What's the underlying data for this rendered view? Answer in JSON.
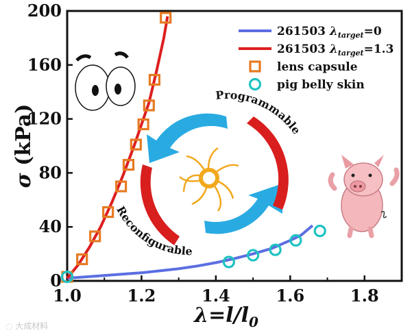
{
  "chart_data": {
    "type": "line",
    "xlabel": "λ=l/l0",
    "ylabel": "σ (kPa)",
    "xlim": [
      1.0,
      1.9
    ],
    "ylim": [
      0,
      200
    ],
    "xticks": [
      "1.0",
      "1.2",
      "1.4",
      "1.6",
      "1.8"
    ],
    "yticks": [
      "0",
      "40",
      "80",
      "120",
      "160",
      "200"
    ],
    "legend_position": "top-right",
    "series": [
      {
        "name": "261503 λtarget=0",
        "legend_main": "261503 ",
        "legend_sym": "λ",
        "legend_sub": "target",
        "legend_tail": "=0",
        "kind": "line",
        "color": "#5b6ee1",
        "x": [
          1.0,
          1.05,
          1.1,
          1.15,
          1.2,
          1.25,
          1.3,
          1.35,
          1.4,
          1.45,
          1.5,
          1.55,
          1.6,
          1.63,
          1.66
        ],
        "y": [
          2,
          3,
          4,
          5,
          6,
          7.5,
          9,
          11,
          13.5,
          16.5,
          20,
          24,
          30,
          34,
          41
        ]
      },
      {
        "name": "261503 λtarget=1.3",
        "legend_main": "261503 ",
        "legend_sym": "λ",
        "legend_sub": "target",
        "legend_tail": "=1.3",
        "kind": "line",
        "color": "#dd1f1f",
        "x": [
          1.0,
          1.03,
          1.06,
          1.09,
          1.12,
          1.15,
          1.18,
          1.2,
          1.22,
          1.24,
          1.26,
          1.27
        ],
        "y": [
          2,
          12,
          25,
          40,
          58,
          78,
          100,
          116,
          132,
          155,
          180,
          196
        ]
      },
      {
        "name": "lens capsule",
        "kind": "marker-square",
        "color": "#e67a22",
        "x": [
          1.0,
          1.04,
          1.075,
          1.11,
          1.145,
          1.165,
          1.185,
          1.205,
          1.22,
          1.235,
          1.265
        ],
        "y": [
          3,
          16,
          33,
          51,
          70,
          86,
          101,
          116,
          130,
          149,
          195
        ]
      },
      {
        "name": "pig belly skin",
        "kind": "marker-circle",
        "color": "#1ec2c2",
        "x": [
          1.0,
          1.435,
          1.5,
          1.56,
          1.615,
          1.68
        ],
        "y": [
          3,
          14,
          19,
          23,
          30,
          37
        ]
      }
    ],
    "annotations": [
      "Programmable",
      "Reconfigurable"
    ]
  }
}
